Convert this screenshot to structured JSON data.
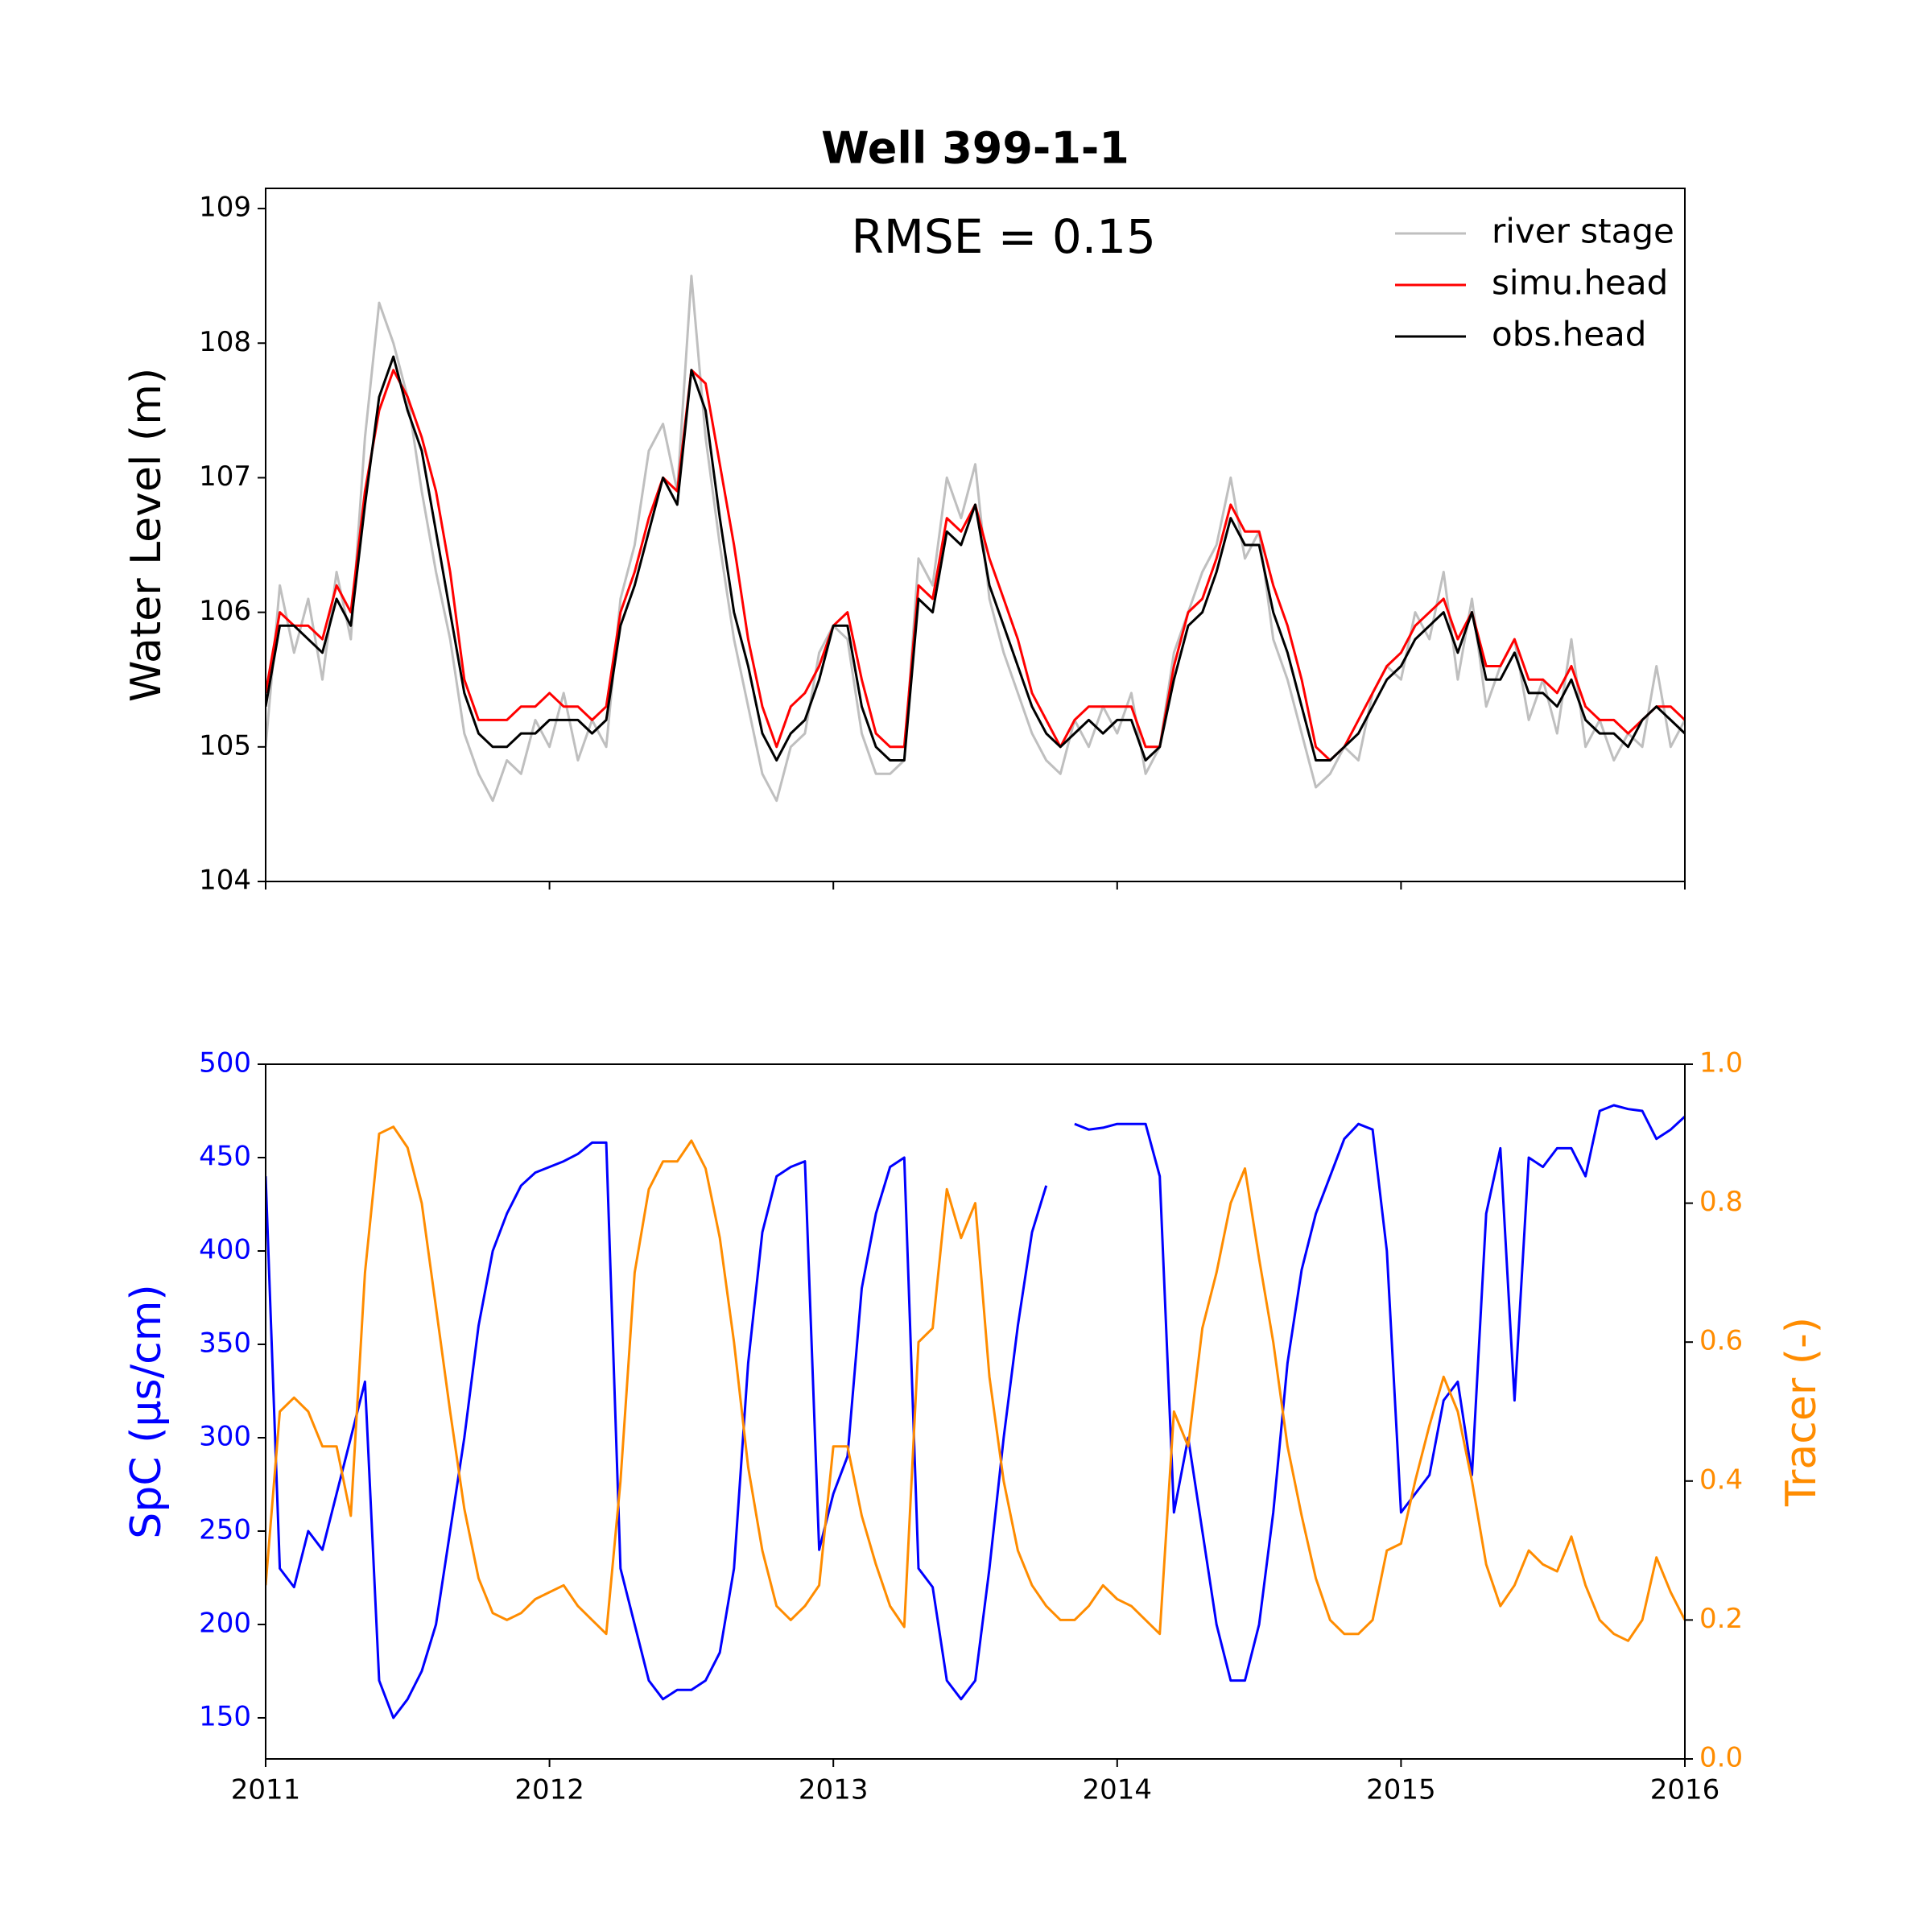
{
  "chart_data": [
    {
      "type": "line",
      "title": "Well 399-1-1",
      "ylabel": "Water Level (m)",
      "annotation": "RMSE = 0.15",
      "legend": "upper right",
      "xlim": [
        2011,
        2016
      ],
      "xticks": [
        2011,
        2012,
        2013,
        2014,
        2015,
        2016
      ],
      "ylim": [
        104,
        109.15
      ],
      "yticks": [
        104,
        105,
        106,
        107,
        108,
        109
      ],
      "x": [
        2011,
        2011.05,
        2011.1,
        2011.15,
        2011.2,
        2011.25,
        2011.3,
        2011.35,
        2011.4,
        2011.45,
        2011.5,
        2011.55,
        2011.6,
        2011.65,
        2011.7,
        2011.75,
        2011.8,
        2011.85,
        2011.9,
        2011.95,
        2012,
        2012.05,
        2012.1,
        2012.15,
        2012.2,
        2012.25,
        2012.3,
        2012.35,
        2012.4,
        2012.45,
        2012.5,
        2012.55,
        2012.6,
        2012.65,
        2012.7,
        2012.75,
        2012.8,
        2012.85,
        2012.9,
        2012.95,
        2013,
        2013.05,
        2013.1,
        2013.15,
        2013.2,
        2013.25,
        2013.3,
        2013.35,
        2013.4,
        2013.45,
        2013.5,
        2013.55,
        2013.6,
        2013.65,
        2013.7,
        2013.75,
        2013.8,
        2013.85,
        2013.9,
        2013.95,
        2014,
        2014.05,
        2014.1,
        2014.15,
        2014.2,
        2014.25,
        2014.3,
        2014.35,
        2014.4,
        2014.45,
        2014.5,
        2014.55,
        2014.6,
        2014.65,
        2014.7,
        2014.75,
        2014.8,
        2014.85,
        2014.9,
        2014.95,
        2015,
        2015.05,
        2015.1,
        2015.15,
        2015.2,
        2015.25,
        2015.3,
        2015.35,
        2015.4,
        2015.45,
        2015.5,
        2015.55,
        2015.6,
        2015.65,
        2015.7,
        2015.75,
        2015.8,
        2015.85,
        2015.9,
        2015.95,
        2016
      ],
      "series": [
        {
          "name": "river stage",
          "color": "#bfbfbf",
          "values": [
            105.0,
            106.2,
            105.7,
            106.1,
            105.5,
            106.3,
            105.8,
            107.3,
            108.3,
            108.0,
            107.6,
            106.9,
            106.3,
            105.8,
            105.1,
            104.8,
            104.6,
            104.9,
            104.8,
            105.2,
            105.0,
            105.4,
            104.9,
            105.2,
            105.0,
            106.1,
            106.5,
            107.2,
            107.4,
            106.9,
            108.5,
            107.3,
            106.5,
            105.8,
            105.3,
            104.8,
            104.6,
            105.0,
            105.1,
            105.7,
            105.9,
            105.8,
            105.1,
            104.8,
            104.8,
            104.9,
            106.4,
            106.2,
            107.0,
            106.7,
            107.1,
            106.1,
            105.7,
            105.4,
            105.1,
            104.9,
            104.8,
            105.2,
            105.0,
            105.3,
            105.1,
            105.4,
            104.8,
            105.0,
            105.7,
            106.0,
            106.3,
            106.5,
            107.0,
            106.4,
            106.6,
            105.8,
            105.5,
            105.1,
            104.7,
            104.8,
            105.0,
            104.9,
            105.4,
            105.6,
            105.5,
            106.0,
            105.8,
            106.3,
            105.5,
            106.1,
            105.3,
            105.6,
            105.8,
            105.2,
            105.5,
            105.1,
            105.8,
            105.0,
            105.2,
            104.9,
            105.1,
            105.0,
            105.6,
            105.0,
            105.2
          ]
        },
        {
          "name": "simu.head",
          "color": "#ff0000",
          "values": [
            105.4,
            106.0,
            105.9,
            105.9,
            105.8,
            106.2,
            106.0,
            106.9,
            107.5,
            107.8,
            107.6,
            107.3,
            106.9,
            106.3,
            105.5,
            105.2,
            105.2,
            105.2,
            105.3,
            105.3,
            105.4,
            105.3,
            105.3,
            105.2,
            105.3,
            106.0,
            106.3,
            106.7,
            107.0,
            106.9,
            107.8,
            107.7,
            107.1,
            106.5,
            105.8,
            105.3,
            105.0,
            105.3,
            105.4,
            105.6,
            105.9,
            106.0,
            105.5,
            105.1,
            105.0,
            105.0,
            106.2,
            106.1,
            106.7,
            106.6,
            106.8,
            106.4,
            106.1,
            105.8,
            105.4,
            105.2,
            105.0,
            105.2,
            105.3,
            105.3,
            105.3,
            105.3,
            105.0,
            105.0,
            105.6,
            106.0,
            106.1,
            106.4,
            106.8,
            106.6,
            106.6,
            106.2,
            105.9,
            105.5,
            105.0,
            104.9,
            105.0,
            105.2,
            105.4,
            105.6,
            105.7,
            105.9,
            106.0,
            106.1,
            105.8,
            106.0,
            105.6,
            105.6,
            105.8,
            105.5,
            105.5,
            105.4,
            105.6,
            105.3,
            105.2,
            105.2,
            105.1,
            105.2,
            105.3,
            105.3,
            105.2
          ]
        },
        {
          "name": "obs.head",
          "color": "#000000",
          "values": [
            105.3,
            105.9,
            105.9,
            105.8,
            105.7,
            106.1,
            105.9,
            106.8,
            107.6,
            107.9,
            107.5,
            107.2,
            106.6,
            106.0,
            105.4,
            105.1,
            105.0,
            105.0,
            105.1,
            105.1,
            105.2,
            105.2,
            105.2,
            105.1,
            105.2,
            105.9,
            106.2,
            106.6,
            107.0,
            106.8,
            107.8,
            107.5,
            106.7,
            106.0,
            105.6,
            105.1,
            104.9,
            105.1,
            105.2,
            105.5,
            105.9,
            105.9,
            105.3,
            105.0,
            104.9,
            104.9,
            106.1,
            106.0,
            106.6,
            106.5,
            106.8,
            106.2,
            105.9,
            105.6,
            105.3,
            105.1,
            105.0,
            105.1,
            105.2,
            105.1,
            105.2,
            105.2,
            104.9,
            105.0,
            105.5,
            105.9,
            106.0,
            106.3,
            106.7,
            106.5,
            106.5,
            106.0,
            105.7,
            105.3,
            104.9,
            104.9,
            105.0,
            105.1,
            105.3,
            105.5,
            105.6,
            105.8,
            105.9,
            106.0,
            105.7,
            106.0,
            105.5,
            105.5,
            105.7,
            105.4,
            105.4,
            105.3,
            105.5,
            105.2,
            105.1,
            105.1,
            105.0,
            105.2,
            105.3,
            105.2,
            105.1
          ]
        }
      ]
    },
    {
      "type": "line",
      "ylabel": "SpC (μs/cm)",
      "y2label": "Tracer (-)",
      "xlim": [
        2011,
        2016
      ],
      "xticks": [
        2011,
        2012,
        2013,
        2014,
        2015,
        2016
      ],
      "ylim": [
        128,
        500
      ],
      "yticks": [
        150,
        200,
        250,
        300,
        350,
        400,
        450,
        500
      ],
      "y2lim": [
        0,
        1
      ],
      "y2ticks": [
        {
          "value": 0,
          "label": "0.0"
        },
        0.2,
        0.4,
        0.6,
        0.8,
        {
          "value": 1,
          "label": "1.0"
        }
      ],
      "x": [
        2011,
        2011.05,
        2011.1,
        2011.15,
        2011.2,
        2011.25,
        2011.3,
        2011.35,
        2011.4,
        2011.45,
        2011.5,
        2011.55,
        2011.6,
        2011.65,
        2011.7,
        2011.75,
        2011.8,
        2011.85,
        2011.9,
        2011.95,
        2012,
        2012.05,
        2012.1,
        2012.15,
        2012.2,
        2012.25,
        2012.3,
        2012.35,
        2012.4,
        2012.45,
        2012.5,
        2012.55,
        2012.6,
        2012.65,
        2012.7,
        2012.75,
        2012.8,
        2012.85,
        2012.9,
        2012.95,
        2013,
        2013.05,
        2013.1,
        2013.15,
        2013.2,
        2013.25,
        2013.3,
        2013.35,
        2013.4,
        2013.45,
        2013.5,
        2013.55,
        2013.6,
        2013.65,
        2013.7,
        2013.75,
        2013.8,
        2013.85,
        2013.9,
        2013.95,
        2014,
        2014.05,
        2014.1,
        2014.15,
        2014.2,
        2014.25,
        2014.3,
        2014.35,
        2014.4,
        2014.45,
        2014.5,
        2014.55,
        2014.6,
        2014.65,
        2014.7,
        2014.75,
        2014.8,
        2014.85,
        2014.9,
        2014.95,
        2015,
        2015.05,
        2015.1,
        2015.15,
        2015.2,
        2015.25,
        2015.3,
        2015.35,
        2015.4,
        2015.45,
        2015.5,
        2015.55,
        2015.6,
        2015.65,
        2015.7,
        2015.75,
        2015.8,
        2015.85,
        2015.9,
        2015.95,
        2016
      ],
      "series": [
        {
          "color": "#0000ff",
          "axis": "y",
          "values": [
            440,
            230,
            220,
            250,
            240,
            270,
            300,
            330,
            170,
            150,
            160,
            175,
            200,
            250,
            300,
            360,
            400,
            420,
            435,
            442,
            445,
            448,
            452,
            458,
            458,
            230,
            200,
            170,
            160,
            165,
            165,
            170,
            185,
            230,
            340,
            410,
            440,
            445,
            448,
            240,
            270,
            290,
            380,
            420,
            445,
            450,
            230,
            220,
            170,
            160,
            170,
            230,
            300,
            360,
            410,
            435,
            null,
            468,
            465,
            466,
            468,
            468,
            468,
            440,
            260,
            300,
            250,
            200,
            170,
            170,
            200,
            260,
            340,
            390,
            420,
            440,
            460,
            468,
            465,
            400,
            260,
            270,
            280,
            320,
            330,
            280,
            420,
            455,
            320,
            450,
            445,
            455,
            455,
            440,
            475,
            478,
            476,
            475,
            460,
            465,
            472
          ]
        },
        {
          "color": "#ff8c00",
          "axis": "y2",
          "values": [
            0.25,
            0.5,
            0.52,
            0.5,
            0.45,
            0.45,
            0.35,
            0.7,
            0.9,
            0.91,
            0.88,
            0.8,
            0.65,
            0.5,
            0.36,
            0.26,
            0.21,
            0.2,
            0.21,
            0.23,
            0.24,
            0.25,
            0.22,
            0.2,
            0.18,
            0.4,
            0.7,
            0.82,
            0.86,
            0.86,
            0.89,
            0.85,
            0.75,
            0.6,
            0.42,
            0.3,
            0.22,
            0.2,
            0.22,
            0.25,
            0.45,
            0.45,
            0.35,
            0.28,
            0.22,
            0.19,
            0.6,
            0.62,
            0.82,
            0.75,
            0.8,
            0.55,
            0.4,
            0.3,
            0.25,
            0.22,
            0.2,
            0.2,
            0.22,
            0.25,
            0.23,
            0.22,
            0.2,
            0.18,
            0.5,
            0.45,
            0.62,
            0.7,
            0.8,
            0.85,
            0.72,
            0.6,
            0.45,
            0.35,
            0.26,
            0.2,
            0.18,
            0.18,
            0.2,
            0.3,
            0.31,
            0.4,
            0.48,
            0.55,
            0.5,
            0.4,
            0.28,
            0.22,
            0.25,
            0.3,
            0.28,
            0.27,
            0.32,
            0.25,
            0.2,
            0.18,
            0.17,
            0.2,
            0.29,
            0.24,
            0.2
          ]
        }
      ]
    }
  ]
}
